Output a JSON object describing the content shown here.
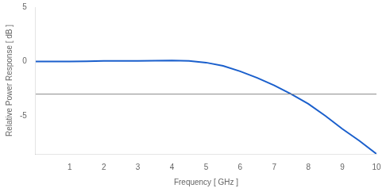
{
  "chart_data": {
    "type": "line",
    "xlabel": "Frequency [ GHz ]",
    "ylabel": "Relative Power Response [ dB ]",
    "x": [
      0,
      0.5,
      1.0,
      1.5,
      2.0,
      2.5,
      3.0,
      3.5,
      4.0,
      4.5,
      5.0,
      5.5,
      6.0,
      6.5,
      7.0,
      7.5,
      8.0,
      8.5,
      9.0,
      9.5,
      10.0
    ],
    "values": [
      0.0,
      0.0,
      0.0,
      0.02,
      0.05,
      0.05,
      0.05,
      0.08,
      0.1,
      0.05,
      -0.1,
      -0.4,
      -0.9,
      -1.5,
      -2.2,
      -3.0,
      -3.9,
      -5.0,
      -6.2,
      -7.3,
      -8.5
    ],
    "color": "#1a5fcc",
    "reference_line": -3,
    "xlim": [
      0,
      10
    ],
    "ylim": [
      -8.5,
      5
    ],
    "xticks": [
      1,
      2,
      3,
      4,
      5,
      6,
      7,
      8,
      9,
      10
    ],
    "yticks": [
      5,
      0,
      -5
    ],
    "grid": false
  }
}
